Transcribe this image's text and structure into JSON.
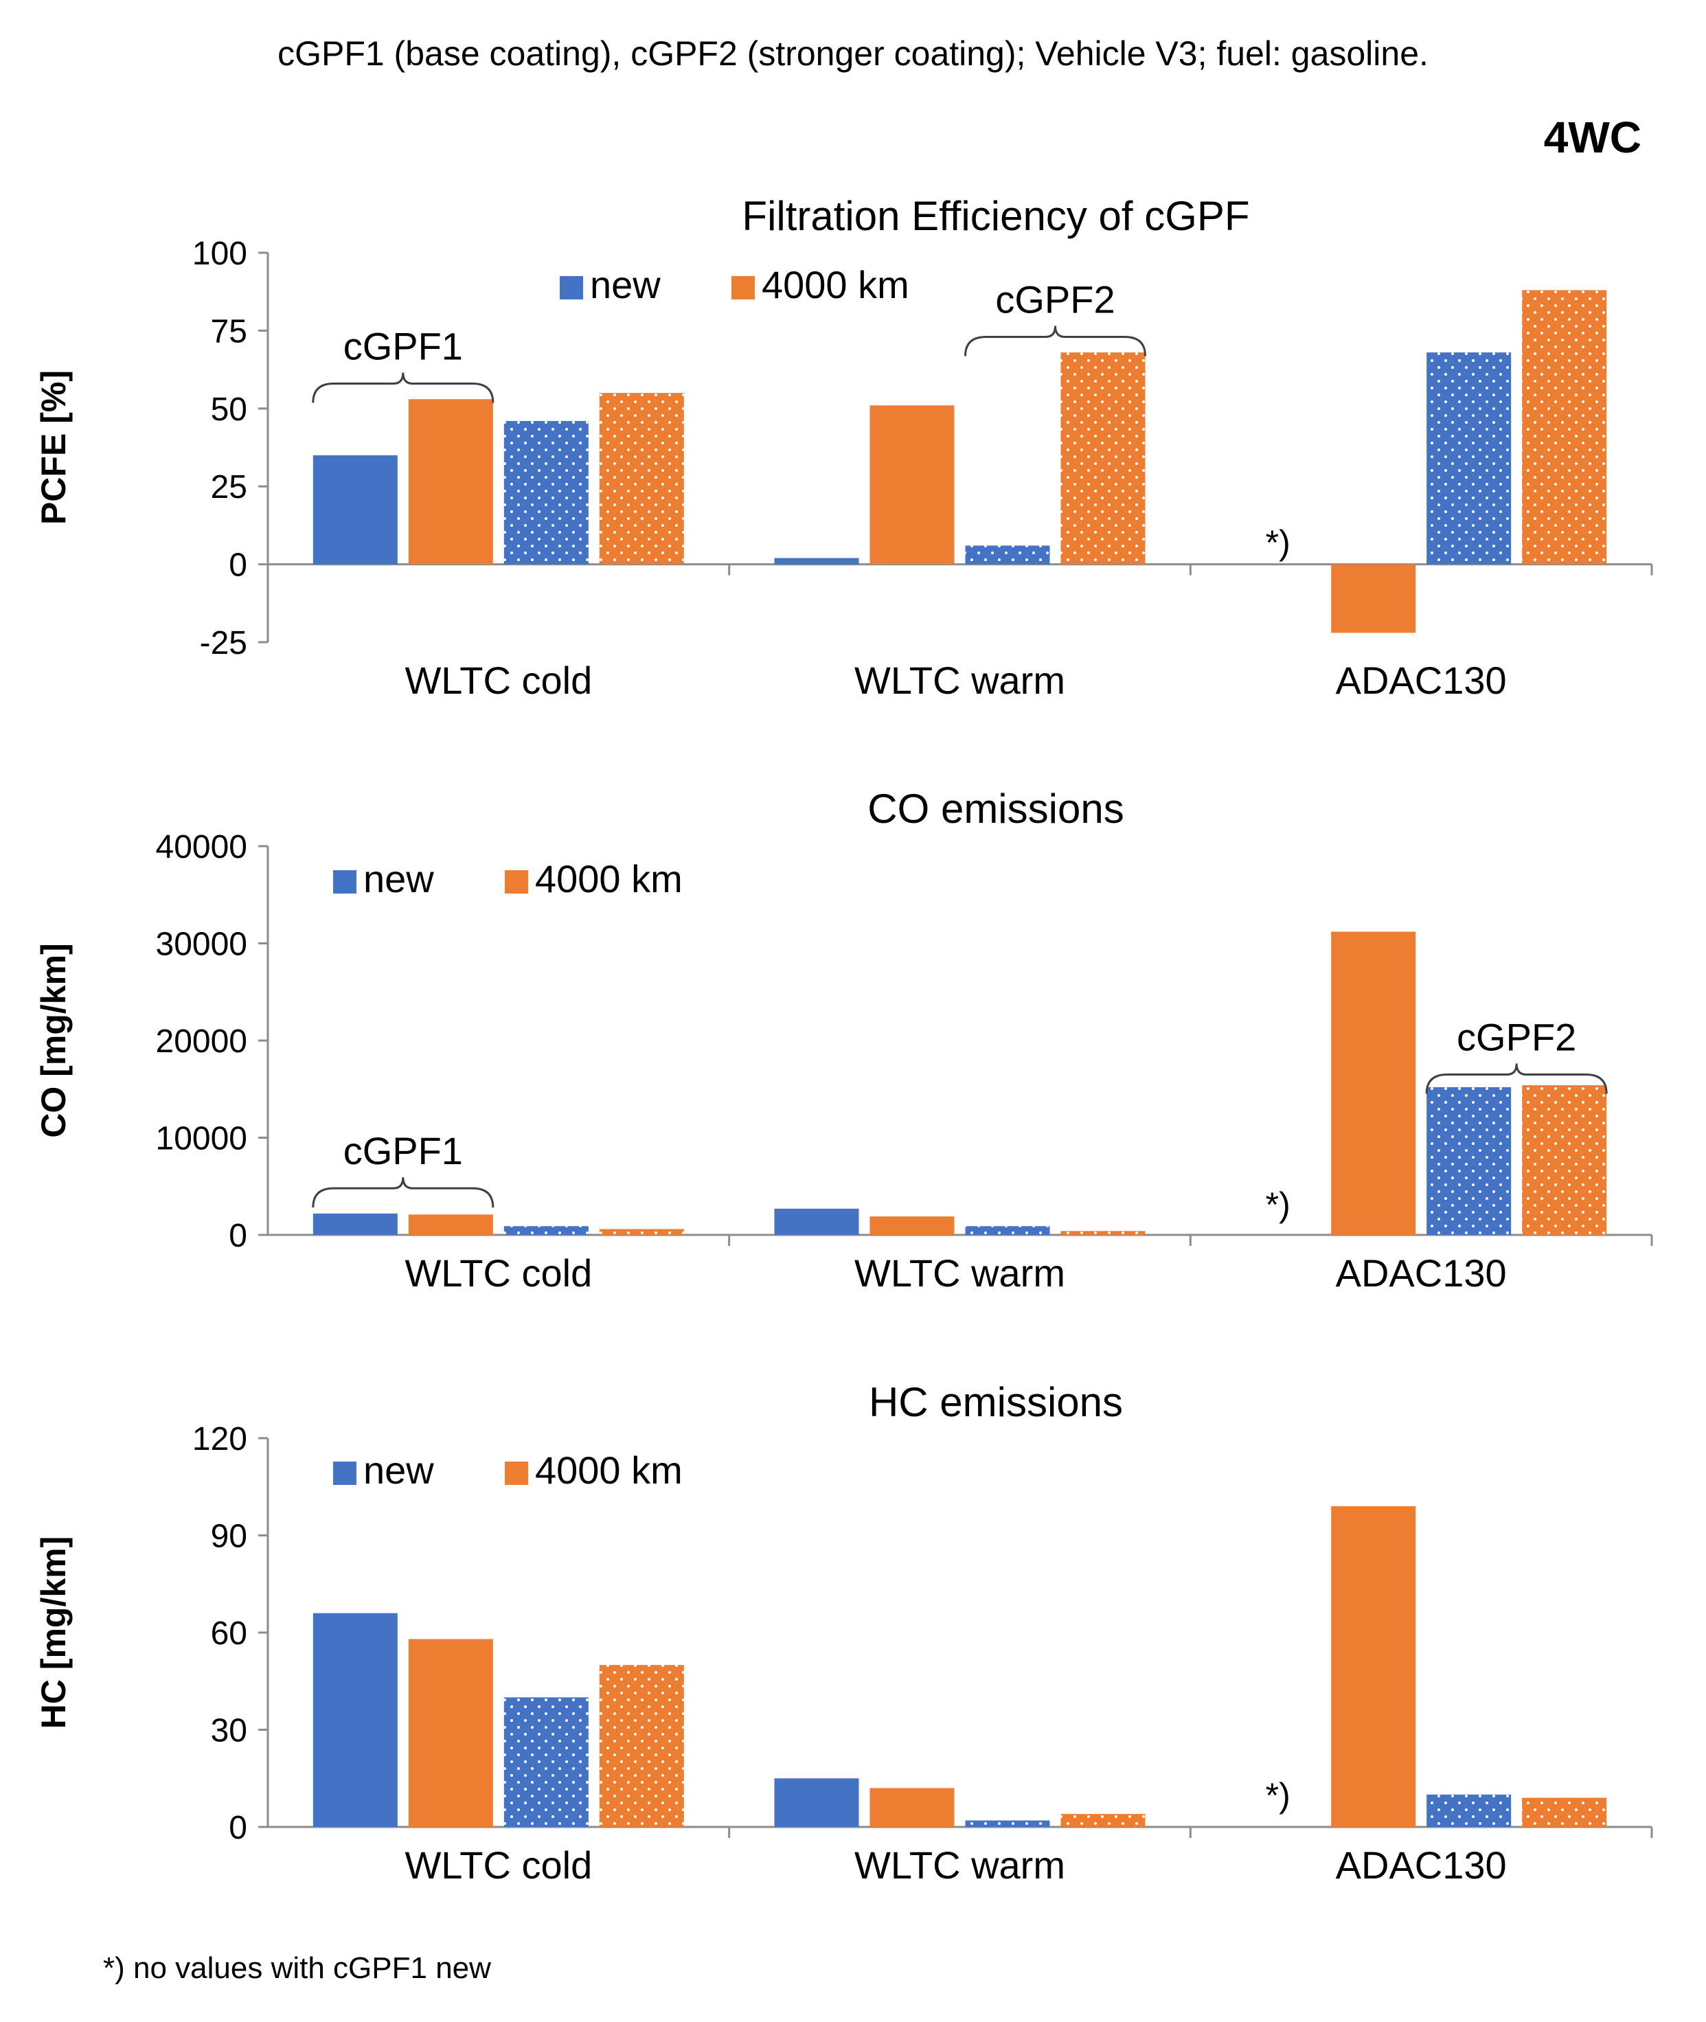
{
  "header": {
    "caption": "cGPF1 (base coating), cGPF2 (stronger coating);  Vehicle V3;   fuel: gasoline.",
    "tag": "4WC"
  },
  "footnote": "*) no values with cGPF1 new",
  "colors": {
    "new": "#4472C4",
    "km4000": "#ED7D31",
    "axis": "#8c8c8c",
    "dot": "#ffffff"
  },
  "chart_data": [
    {
      "type": "bar",
      "title": "Filtration  Efficiency of cGPF",
      "ylabel": "PCFE [%]",
      "ylim": [
        -25,
        100
      ],
      "yticks": [
        100,
        75,
        50,
        25,
        0,
        -25
      ],
      "categories": [
        "WLTC cold",
        "WLTC warm",
        "ADAC130"
      ],
      "legend": {
        "new": "new",
        "km4000": "4000 km",
        "placement": "top-center"
      },
      "series": [
        {
          "name": "cGPF1 new",
          "filter": "cGPF1",
          "state": "new",
          "pattern": "solid",
          "values": [
            35,
            2,
            null
          ]
        },
        {
          "name": "cGPF1 4000 km",
          "filter": "cGPF1",
          "state": "4000 km",
          "pattern": "solid",
          "values": [
            53,
            51,
            -22
          ]
        },
        {
          "name": "cGPF2 new",
          "filter": "cGPF2",
          "state": "new",
          "pattern": "dotted",
          "values": [
            46,
            6,
            68
          ]
        },
        {
          "name": "cGPF2 4000 km",
          "filter": "cGPF2",
          "state": "4000 km",
          "pattern": "dotted",
          "values": [
            55,
            68,
            88
          ]
        }
      ],
      "annotations": [
        {
          "text": "cGPF1",
          "category": 0,
          "from": 0,
          "to": 1,
          "value": 58
        },
        {
          "text": "cGPF2",
          "category": 1,
          "from": 2,
          "to": 3,
          "value": 73
        },
        {
          "text": "*)",
          "category": 2,
          "series": 0,
          "value": 1
        }
      ]
    },
    {
      "type": "bar",
      "title": "CO emissions",
      "ylabel": "CO [mg/km]",
      "ylim": [
        0,
        40000
      ],
      "yticks": [
        40000,
        30000,
        20000,
        10000,
        0
      ],
      "categories": [
        "WLTC cold",
        "WLTC warm",
        "ADAC130"
      ],
      "legend": {
        "new": "new",
        "km4000": "4000 km",
        "placement": "top-left"
      },
      "series": [
        {
          "name": "cGPF1 new",
          "filter": "cGPF1",
          "state": "new",
          "pattern": "solid",
          "values": [
            2200,
            2700,
            null
          ]
        },
        {
          "name": "cGPF1 4000 km",
          "filter": "cGPF1",
          "state": "4000 km",
          "pattern": "solid",
          "values": [
            2100,
            1900,
            31200
          ]
        },
        {
          "name": "cGPF2 new",
          "filter": "cGPF2",
          "state": "new",
          "pattern": "dotted",
          "values": [
            900,
            900,
            15200
          ]
        },
        {
          "name": "cGPF2 4000 km",
          "filter": "cGPF2",
          "state": "4000 km",
          "pattern": "dotted",
          "values": [
            600,
            400,
            15400
          ]
        }
      ],
      "annotations": [
        {
          "text": "cGPF1",
          "category": 0,
          "from": 0,
          "to": 1,
          "value": 4800
        },
        {
          "text": "cGPF2",
          "category": 2,
          "from": 2,
          "to": 3,
          "value": 16500
        },
        {
          "text": "*)",
          "category": 2,
          "series": 0,
          "value": 1200
        }
      ]
    },
    {
      "type": "bar",
      "title": "HC emissions",
      "ylabel": "HC [mg/km]",
      "ylim": [
        0,
        120
      ],
      "yticks": [
        120,
        90,
        60,
        30,
        0
      ],
      "categories": [
        "WLTC cold",
        "WLTC warm",
        "ADAC130"
      ],
      "legend": {
        "new": "new",
        "km4000": "4000 km",
        "placement": "top-left"
      },
      "series": [
        {
          "name": "cGPF1 new",
          "filter": "cGPF1",
          "state": "new",
          "pattern": "solid",
          "values": [
            66,
            15,
            null
          ]
        },
        {
          "name": "cGPF1 4000 km",
          "filter": "cGPF1",
          "state": "4000 km",
          "pattern": "solid",
          "values": [
            58,
            12,
            99
          ]
        },
        {
          "name": "cGPF2 new",
          "filter": "cGPF2",
          "state": "new",
          "pattern": "dotted",
          "values": [
            40,
            2,
            10
          ]
        },
        {
          "name": "cGPF2 4000 km",
          "filter": "cGPF2",
          "state": "4000 km",
          "pattern": "dotted",
          "values": [
            50,
            4,
            9
          ]
        }
      ],
      "annotations": [
        {
          "text": "*)",
          "category": 2,
          "series": 0,
          "value": 4
        }
      ]
    }
  ]
}
